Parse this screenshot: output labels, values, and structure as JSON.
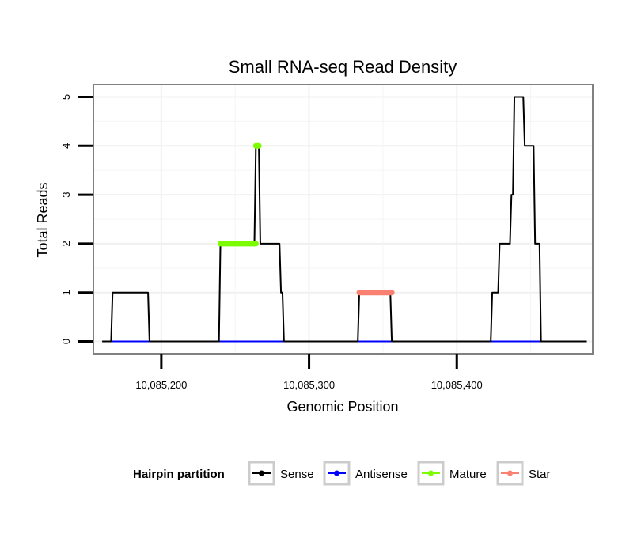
{
  "chart_data": {
    "type": "line",
    "title": "Small RNA-seq Read Density",
    "xlabel": "Genomic Position",
    "ylabel": "Total Reads",
    "xlim": [
      10085154,
      10085492
    ],
    "ylim": [
      -0.25,
      5.25
    ],
    "x_ticks": [
      10085200,
      10085300,
      10085400
    ],
    "x_tick_labels": [
      "10,085,200",
      "10,085,300",
      "10,085,400"
    ],
    "y_ticks": [
      0,
      1,
      2,
      3,
      4,
      5
    ],
    "y_tick_labels": [
      "0",
      "1",
      "2",
      "3",
      "4",
      "5"
    ],
    "grid": true,
    "legend": {
      "title": "Hairpin partition",
      "position": "bottom",
      "entries": [
        {
          "name": "Sense",
          "color": "#000000"
        },
        {
          "name": "Antisense",
          "color": "#0000ff"
        },
        {
          "name": "Mature",
          "color": "#7cfc00"
        },
        {
          "name": "Star",
          "color": "#fa8072"
        }
      ]
    },
    "series": [
      {
        "name": "Sense",
        "color": "#000000",
        "points": [
          [
            10085160,
            0
          ],
          [
            10085166,
            0
          ],
          [
            10085167,
            1
          ],
          [
            10085191,
            1
          ],
          [
            10085192,
            0
          ],
          [
            10085239,
            0
          ],
          [
            10085240,
            2
          ],
          [
            10085263,
            2
          ],
          [
            10085264,
            4
          ],
          [
            10085266,
            4
          ],
          [
            10085267,
            2
          ],
          [
            10085280,
            2
          ],
          [
            10085281,
            1
          ],
          [
            10085282,
            1
          ],
          [
            10085283,
            0
          ],
          [
            10085333,
            0
          ],
          [
            10085334,
            1
          ],
          [
            10085355,
            1
          ],
          [
            10085356,
            0
          ],
          [
            10085423,
            0
          ],
          [
            10085424,
            1
          ],
          [
            10085428,
            1
          ],
          [
            10085429,
            2
          ],
          [
            10085436,
            2
          ],
          [
            10085437,
            3
          ],
          [
            10085438,
            3
          ],
          [
            10085439,
            5
          ],
          [
            10085445,
            5
          ],
          [
            10085446,
            4
          ],
          [
            10085452,
            4
          ],
          [
            10085453,
            2
          ],
          [
            10085456,
            2
          ],
          [
            10085457,
            0
          ],
          [
            10085488,
            0
          ]
        ]
      },
      {
        "name": "Antisense",
        "color": "#0000ff",
        "points": [
          [
            10085160,
            0
          ],
          [
            10085459,
            0
          ]
        ]
      },
      {
        "name": "Mature",
        "color": "#7cfc00",
        "segments": [
          {
            "x": [
              10085240,
              10085264
            ],
            "y": 2
          },
          {
            "x": [
              10085264,
              10085266
            ],
            "y": 4
          }
        ]
      },
      {
        "name": "Star",
        "color": "#fa8072",
        "segments": [
          {
            "x": [
              10085334,
              10085356
            ],
            "y": 1
          }
        ]
      }
    ]
  }
}
